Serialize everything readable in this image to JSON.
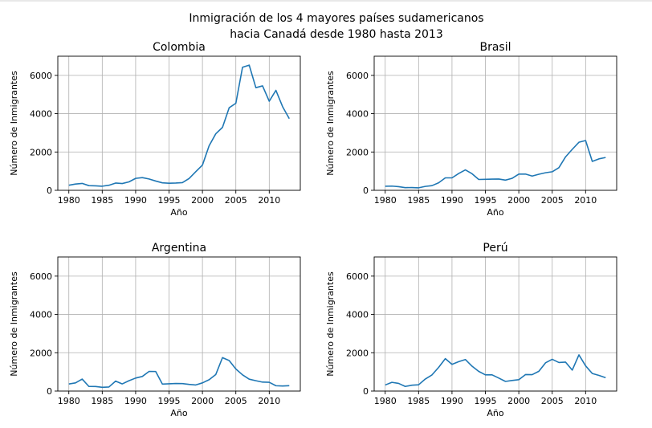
{
  "figure": {
    "suptitle_line1": "Inmigración de los 4 mayores países sudamericanos",
    "suptitle_line2": "hacia Canadá desde 1980 hasta 2013",
    "line_color": "#1f77b4"
  },
  "chart_data": [
    {
      "type": "line",
      "title": "Colombia",
      "xlabel": "Año",
      "ylabel": "Número de Inmigrantes",
      "xlim": [
        1978.35,
        2014.65
      ],
      "ylim": [
        0,
        7000
      ],
      "xticks": [
        1980,
        1985,
        1990,
        1995,
        2000,
        2005,
        2010
      ],
      "yticks": [
        0,
        2000,
        4000,
        6000
      ],
      "grid": true,
      "x": [
        1980,
        1981,
        1982,
        1983,
        1984,
        1985,
        1986,
        1987,
        1988,
        1989,
        1990,
        1991,
        1992,
        1993,
        1994,
        1995,
        1996,
        1997,
        1998,
        1999,
        2000,
        2001,
        2002,
        2003,
        2004,
        2005,
        2006,
        2007,
        2008,
        2009,
        2010,
        2011,
        2012,
        2013
      ],
      "y": [
        266,
        326,
        360,
        244,
        235,
        214,
        264,
        379,
        353,
        440,
        624,
        663,
        592,
        484,
        390,
        371,
        381,
        400,
        614,
        970,
        1317,
        2327,
        2953,
        3286,
        4308,
        4543,
        6424,
        6535,
        5357,
        5452,
        4652,
        5218,
        4366,
        3741
      ]
    },
    {
      "type": "line",
      "title": "Brasil",
      "xlabel": "Año",
      "ylabel": "Número de Inmigrantes",
      "xlim": [
        1978.35,
        2014.65
      ],
      "ylim": [
        0,
        7000
      ],
      "xticks": [
        1980,
        1985,
        1990,
        1995,
        2000,
        2005,
        2010
      ],
      "yticks": [
        0,
        2000,
        4000,
        6000
      ],
      "grid": true,
      "x": [
        1980,
        1981,
        1982,
        1983,
        1984,
        1985,
        1986,
        1987,
        1988,
        1989,
        1990,
        1991,
        1992,
        1993,
        1994,
        1995,
        1996,
        1997,
        1998,
        1999,
        2000,
        2001,
        2002,
        2003,
        2004,
        2005,
        2006,
        2007,
        2008,
        2009,
        2010,
        2011,
        2012,
        2013
      ],
      "y": [
        211,
        220,
        192,
        139,
        145,
        130,
        205,
        244,
        394,
        650,
        650,
        877,
        1066,
        866,
        566,
        572,
        586,
        591,
        531,
        626,
        845,
        847,
        745,
        839,
        917,
        969,
        1181,
        1746,
        2138,
        2509,
        2598,
        1508,
        1642,
        1714
      ]
    },
    {
      "type": "line",
      "title": "Argentina",
      "xlabel": "Año",
      "ylabel": "Número de Inmigrantes",
      "xlim": [
        1978.35,
        2014.65
      ],
      "ylim": [
        0,
        7000
      ],
      "xticks": [
        1980,
        1985,
        1990,
        1995,
        2000,
        2005,
        2010
      ],
      "yticks": [
        0,
        2000,
        4000,
        6000
      ],
      "grid": true,
      "x": [
        1980,
        1981,
        1982,
        1983,
        1984,
        1985,
        1986,
        1987,
        1988,
        1989,
        1990,
        1991,
        1992,
        1993,
        1994,
        1995,
        1996,
        1997,
        1998,
        1999,
        2000,
        2001,
        2002,
        2003,
        2004,
        2005,
        2006,
        2007,
        2008,
        2009,
        2010,
        2011,
        2012,
        2013
      ],
      "y": [
        368,
        426,
        626,
        241,
        237,
        196,
        213,
        519,
        374,
        538,
        678,
        763,
        1023,
        1022,
        366,
        380,
        396,
        391,
        349,
        318,
        427,
        591,
        867,
        1745,
        1591,
        1153,
        847,
        620,
        540,
        467,
        459,
        278,
        263,
        282
      ]
    },
    {
      "type": "line",
      "title": "Perú",
      "xlabel": "Año",
      "ylabel": "Número de Inmigrantes",
      "xlim": [
        1978.35,
        2014.65
      ],
      "ylim": [
        0,
        7000
      ],
      "xticks": [
        1980,
        1985,
        1990,
        1995,
        2000,
        2005,
        2010
      ],
      "yticks": [
        0,
        2000,
        4000,
        6000
      ],
      "grid": true,
      "x": [
        1980,
        1981,
        1982,
        1983,
        1984,
        1985,
        1986,
        1987,
        1988,
        1989,
        1990,
        1991,
        1992,
        1993,
        1994,
        1995,
        1996,
        1997,
        1998,
        1999,
        2000,
        2001,
        2002,
        2003,
        2004,
        2005,
        2006,
        2007,
        2008,
        2009,
        2010,
        2011,
        2012,
        2013
      ],
      "y": [
        317,
        456,
        401,
        241,
        306,
        328,
        628,
        843,
        1237,
        1692,
        1393,
        1535,
        1647,
        1298,
        1027,
        845,
        847,
        679,
        504,
        552,
        594,
        861,
        856,
        1031,
        1474,
        1658,
        1490,
        1511,
        1093,
        1890,
        1318,
        916,
        819,
        697
      ]
    }
  ]
}
